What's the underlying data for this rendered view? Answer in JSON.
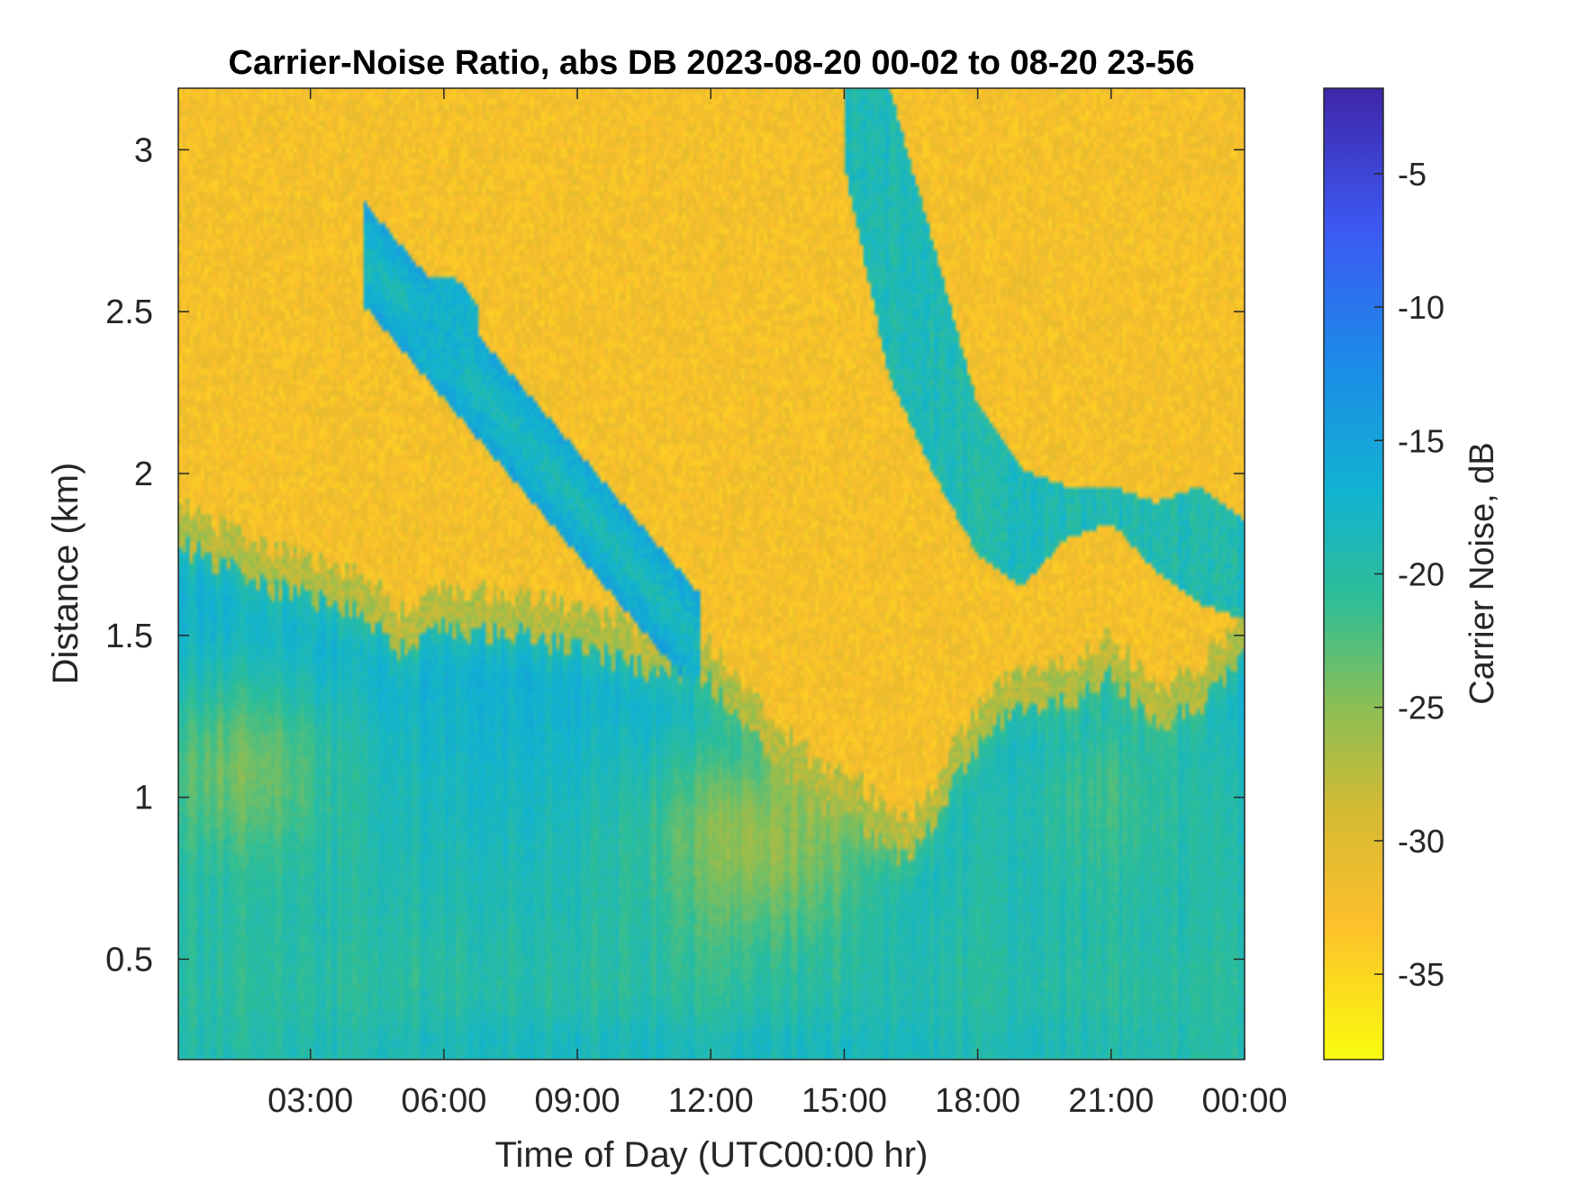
{
  "chart_data": {
    "type": "heatmap",
    "title": "Carrier-Noise Ratio, abs DB 2023-08-20 00-02 to 08-20 23-56",
    "xlabel": "Time of Day (UTC00:00 hr)",
    "ylabel": "Distance (km)",
    "colorbar_label": "Carrier Noise, dB",
    "x_unit": "hour of day",
    "xlim": [
      0.03,
      24.0
    ],
    "ylim": [
      0.19,
      3.19
    ],
    "x_ticks": [
      3,
      6,
      9,
      12,
      15,
      18,
      21,
      24
    ],
    "x_tick_labels": [
      "03:00",
      "06:00",
      "09:00",
      "12:00",
      "15:00",
      "18:00",
      "21:00",
      "00:00"
    ],
    "y_ticks": [
      0.5,
      1,
      1.5,
      2,
      2.5,
      3
    ],
    "y_tick_labels": [
      "0.5",
      "1",
      "1.5",
      "2",
      "2.5",
      "3"
    ],
    "color_limits": [
      -38.2,
      -1.8
    ],
    "colorbar_ticks": [
      -35,
      -30,
      -25,
      -20,
      -15,
      -10,
      -5
    ],
    "colorbar_tick_labels": [
      "-35",
      "-30",
      "-25",
      "-20",
      "-15",
      "-10",
      "-5"
    ],
    "colormap": "parula",
    "colormap_stops": [
      {
        "value": -38.2,
        "color": "#f9fb0e"
      },
      {
        "value": -33.0,
        "color": "#fcbf2c"
      },
      {
        "value": -29.0,
        "color": "#d6ba32"
      },
      {
        "value": -25.0,
        "color": "#8bbe54"
      },
      {
        "value": -21.0,
        "color": "#2fbe96"
      },
      {
        "value": -17.0,
        "color": "#12b3d0"
      },
      {
        "value": -12.0,
        "color": "#1c8ae8"
      },
      {
        "value": -7.0,
        "color": "#3d58f2"
      },
      {
        "value": -1.8,
        "color": "#3e26a8"
      }
    ],
    "grid": false,
    "field_description_note": "approximate boundary of low-CNR (yellow) region vs distance over the day",
    "boundary_hours": [
      0.03,
      2,
      4,
      5,
      6,
      8,
      10,
      12,
      13,
      14,
      15,
      16,
      16.5,
      17.5,
      18.5,
      20,
      21,
      22,
      23,
      24
    ],
    "boundary_km": [
      1.78,
      1.65,
      1.58,
      1.45,
      1.52,
      1.5,
      1.42,
      1.35,
      1.18,
      1.03,
      0.95,
      0.85,
      0.8,
      1.05,
      1.25,
      1.3,
      1.38,
      1.22,
      1.28,
      1.45
    ],
    "upper_cloud_top_km": [
      3.19,
      3.19,
      2.7,
      2.2,
      2.0,
      1.95,
      1.95,
      1.9,
      1.95,
      1.85
    ],
    "upper_cloud_bottom_km": [
      2.95,
      2.3,
      2.0,
      1.75,
      1.65,
      1.8,
      1.85,
      1.7,
      1.6,
      1.55
    ],
    "upper_cloud_hours": [
      15.0,
      16.0,
      17.0,
      18.0,
      19.0,
      20.0,
      21.0,
      22.0,
      23.0,
      24.0
    ]
  }
}
